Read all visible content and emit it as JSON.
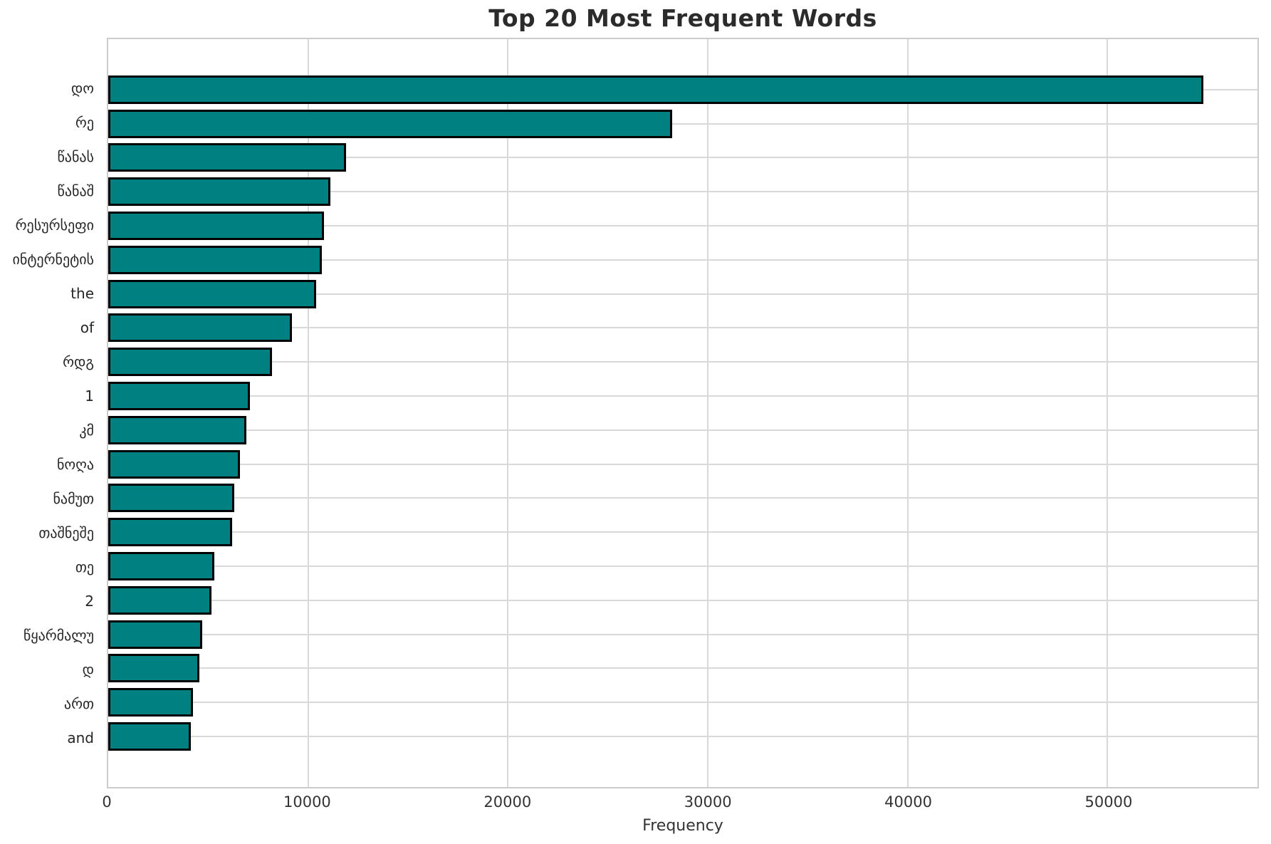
{
  "figure": {
    "title": "Top 20 Most Frequent Words"
  },
  "colors": {
    "bar_fill": "#008080",
    "bar_edge": "#000000",
    "grid": "#d9d9d9",
    "spine": "#cccccc",
    "title_text": "#2b2b2b",
    "tick_text": "#333333"
  },
  "chart_data": {
    "type": "bar",
    "orientation": "horizontal",
    "title": "Top 20 Most Frequent Words",
    "xlabel": "Frequency",
    "ylabel": "",
    "categories": [
      "დო",
      "რე",
      "წანას",
      "წანაშ",
      "რესურსეფი",
      "ინტერნეტის",
      "the",
      "of",
      "რდგ",
      "1",
      "კმ",
      "ნოღა",
      "ნამუთ",
      "თაშნეშე",
      "თე",
      "2",
      "წყარმალუ",
      "დ",
      "ართ",
      "and"
    ],
    "values": [
      54800,
      28200,
      11900,
      11100,
      10800,
      10700,
      10400,
      9200,
      8200,
      7100,
      6900,
      6600,
      6300,
      6200,
      5300,
      5150,
      4700,
      4550,
      4250,
      4150
    ],
    "xticks": [
      0,
      10000,
      20000,
      30000,
      40000,
      50000
    ],
    "xlim": [
      0,
      57500
    ],
    "grid": "both",
    "legend": false,
    "bar_color": "#008080",
    "bar_edge_color": "#000000"
  }
}
